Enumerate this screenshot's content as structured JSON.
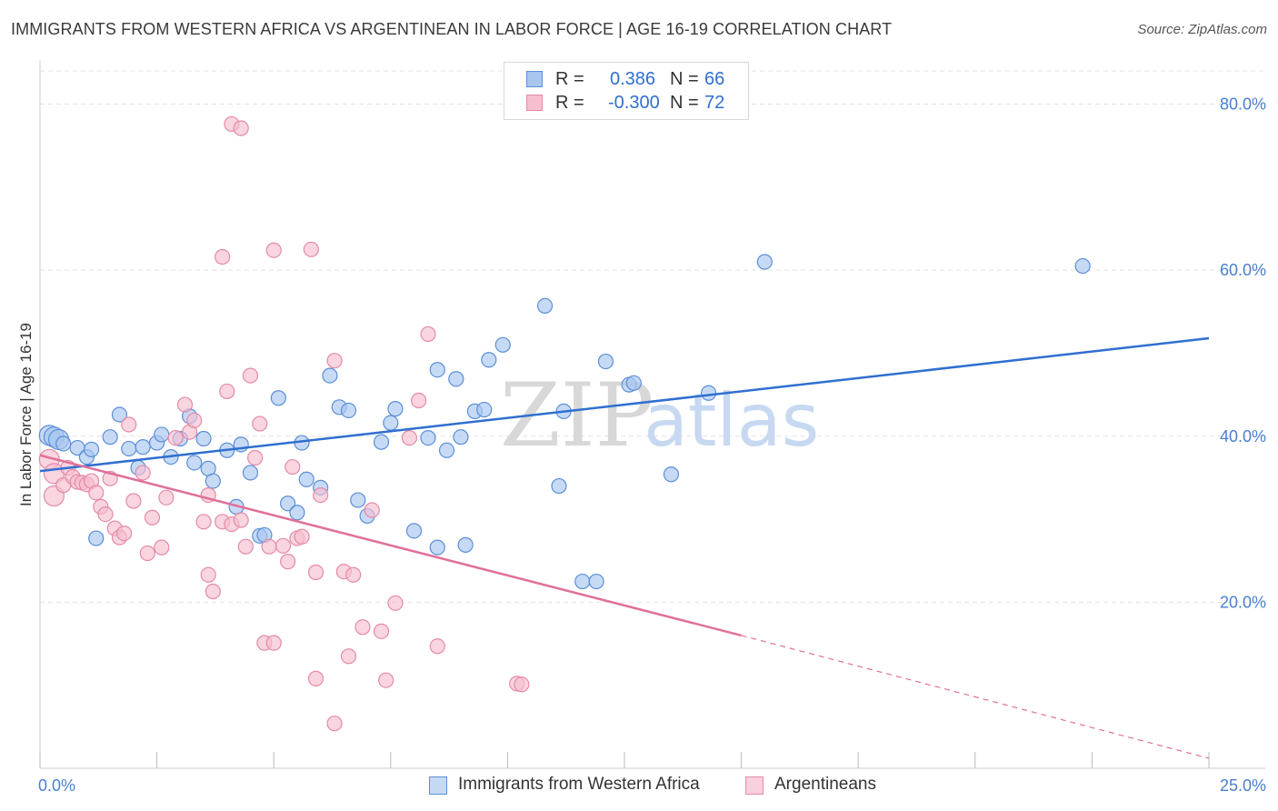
{
  "title": "IMMIGRANTS FROM WESTERN AFRICA VS ARGENTINEAN IN LABOR FORCE | AGE 16-19 CORRELATION CHART",
  "source": "Source: ZipAtlas.com",
  "colors": {
    "blue": "#5b8fd8",
    "blue_fill": "#a9c6ef",
    "blue_line": "#2f6fd0",
    "pink": "#e58aa8",
    "pink_fill": "#f6bfd0",
    "pink_line": "#e0709a",
    "axis_text": "#4a7fd0",
    "grid": "#e2e2e2"
  },
  "legend": {
    "rows": [
      {
        "r_label": "R =",
        "r_value": "0.386",
        "n_label": "N =",
        "n_value": "66",
        "color": "blue"
      },
      {
        "r_label": "R =",
        "r_value": "-0.300",
        "n_label": "N =",
        "n_value": "72",
        "color": "pink"
      }
    ]
  },
  "bottom_legend": {
    "items": [
      {
        "label": "Immigrants from Western Africa",
        "color": "blue"
      },
      {
        "label": "Argentineans",
        "color": "pink"
      }
    ]
  },
  "watermark": {
    "zip": "ZIP",
    "atlas": "atlas"
  },
  "chart_data": {
    "type": "scatter",
    "title": "IMMIGRANTS FROM WESTERN AFRICA VS ARGENTINEAN IN LABOR FORCE | AGE 16-19 CORRELATION CHART",
    "xlabel": "",
    "ylabel": "In Labor Force | Age 16-19",
    "xlim": [
      0,
      25
    ],
    "ylim": [
      0,
      84
    ],
    "x_ticks": [
      0,
      2.5,
      5,
      7.5,
      10,
      12.5,
      15,
      17.5,
      20,
      22.5,
      25
    ],
    "x_tick_labels": [
      "0.0%",
      "",
      "",
      "",
      "",
      "",
      "",
      "",
      "",
      "",
      "25.0%"
    ],
    "y_ticks": [
      20,
      40,
      60,
      80
    ],
    "y_tick_labels": [
      "20.0%",
      "40.0%",
      "60.0%",
      "80.0%"
    ],
    "grid": true,
    "legend_position": "top-center",
    "series": [
      {
        "name": "Immigrants from Western Africa",
        "color": "blue",
        "r": 0.386,
        "n": 66,
        "trend": {
          "x": [
            0,
            25
          ],
          "y": [
            35.8,
            51.8
          ],
          "style": "solid"
        },
        "points": [
          [
            0.2,
            40.1
          ],
          [
            0.3,
            39.9
          ],
          [
            0.4,
            39.6
          ],
          [
            0.5,
            39.1
          ],
          [
            0.8,
            38.6
          ],
          [
            1.0,
            37.5
          ],
          [
            1.1,
            38.4
          ],
          [
            1.2,
            27.7
          ],
          [
            1.5,
            39.9
          ],
          [
            1.7,
            42.6
          ],
          [
            1.9,
            38.5
          ],
          [
            2.1,
            36.2
          ],
          [
            2.2,
            38.7
          ],
          [
            2.5,
            39.2
          ],
          [
            2.6,
            40.2
          ],
          [
            2.8,
            37.5
          ],
          [
            3.0,
            39.7
          ],
          [
            3.2,
            42.4
          ],
          [
            3.3,
            36.8
          ],
          [
            3.5,
            39.7
          ],
          [
            3.6,
            36.1
          ],
          [
            3.7,
            34.6
          ],
          [
            4.0,
            38.3
          ],
          [
            4.2,
            31.5
          ],
          [
            4.3,
            39.0
          ],
          [
            4.5,
            35.6
          ],
          [
            4.7,
            28.0
          ],
          [
            4.8,
            28.1
          ],
          [
            5.1,
            44.6
          ],
          [
            5.3,
            31.9
          ],
          [
            5.5,
            30.8
          ],
          [
            5.6,
            39.2
          ],
          [
            5.7,
            34.8
          ],
          [
            6.0,
            33.8
          ],
          [
            6.2,
            47.3
          ],
          [
            6.4,
            43.5
          ],
          [
            6.6,
            43.1
          ],
          [
            6.8,
            32.3
          ],
          [
            7.0,
            30.4
          ],
          [
            7.3,
            39.3
          ],
          [
            7.5,
            41.6
          ],
          [
            7.6,
            43.3
          ],
          [
            8.0,
            28.6
          ],
          [
            8.3,
            39.8
          ],
          [
            8.5,
            48.0
          ],
          [
            8.5,
            26.6
          ],
          [
            8.7,
            38.3
          ],
          [
            8.9,
            46.9
          ],
          [
            9.0,
            39.9
          ],
          [
            9.1,
            26.9
          ],
          [
            9.3,
            43.0
          ],
          [
            9.5,
            43.2
          ],
          [
            9.6,
            49.2
          ],
          [
            9.9,
            51.0
          ],
          [
            10.8,
            55.7
          ],
          [
            11.1,
            34.0
          ],
          [
            11.2,
            43.0
          ],
          [
            11.6,
            22.5
          ],
          [
            11.9,
            22.5
          ],
          [
            12.1,
            49.0
          ],
          [
            12.6,
            46.2
          ],
          [
            12.7,
            46.4
          ],
          [
            13.5,
            35.4
          ],
          [
            14.3,
            45.2
          ],
          [
            15.5,
            61.0
          ],
          [
            22.3,
            60.5
          ]
        ]
      },
      {
        "name": "Argentineans",
        "color": "pink",
        "r": -0.3,
        "n": 72,
        "trend": {
          "x": [
            0,
            15
          ],
          "y": [
            37.7,
            16.0
          ],
          "style": "solid"
        },
        "trend_extension": {
          "x": [
            15,
            25
          ],
          "y": [
            16.0,
            1.2
          ],
          "style": "dashed"
        },
        "points": [
          [
            0.2,
            37.2
          ],
          [
            0.3,
            35.5
          ],
          [
            0.3,
            32.8
          ],
          [
            0.5,
            34.1
          ],
          [
            0.6,
            36.2
          ],
          [
            0.7,
            35.1
          ],
          [
            0.8,
            34.5
          ],
          [
            0.9,
            34.4
          ],
          [
            1.0,
            34.2
          ],
          [
            1.1,
            34.6
          ],
          [
            1.2,
            33.2
          ],
          [
            1.3,
            31.5
          ],
          [
            1.4,
            30.6
          ],
          [
            1.5,
            34.9
          ],
          [
            1.6,
            28.9
          ],
          [
            1.7,
            27.8
          ],
          [
            1.8,
            28.3
          ],
          [
            1.9,
            41.4
          ],
          [
            2.0,
            32.2
          ],
          [
            2.2,
            35.6
          ],
          [
            2.3,
            25.9
          ],
          [
            2.4,
            30.2
          ],
          [
            2.6,
            26.6
          ],
          [
            2.7,
            32.6
          ],
          [
            2.9,
            39.8
          ],
          [
            3.1,
            43.8
          ],
          [
            3.2,
            40.5
          ],
          [
            3.3,
            41.9
          ],
          [
            3.5,
            29.7
          ],
          [
            3.6,
            32.9
          ],
          [
            3.6,
            23.3
          ],
          [
            3.7,
            21.3
          ],
          [
            3.9,
            29.7
          ],
          [
            4.0,
            45.4
          ],
          [
            4.1,
            29.4
          ],
          [
            4.3,
            29.9
          ],
          [
            4.4,
            26.7
          ],
          [
            4.5,
            47.3
          ],
          [
            4.6,
            37.4
          ],
          [
            4.7,
            41.5
          ],
          [
            4.8,
            15.1
          ],
          [
            4.9,
            26.7
          ],
          [
            5.0,
            15.1
          ],
          [
            5.2,
            26.8
          ],
          [
            5.3,
            24.9
          ],
          [
            5.4,
            36.3
          ],
          [
            5.5,
            27.7
          ],
          [
            5.6,
            27.9
          ],
          [
            5.8,
            62.5
          ],
          [
            5.9,
            23.6
          ],
          [
            5.9,
            10.8
          ],
          [
            6.0,
            32.9
          ],
          [
            6.3,
            49.1
          ],
          [
            6.3,
            5.4
          ],
          [
            6.5,
            23.7
          ],
          [
            6.6,
            13.5
          ],
          [
            6.7,
            23.3
          ],
          [
            6.9,
            17.0
          ],
          [
            7.1,
            31.1
          ],
          [
            7.3,
            16.5
          ],
          [
            7.4,
            10.6
          ],
          [
            7.6,
            19.9
          ],
          [
            7.9,
            39.8
          ],
          [
            8.1,
            44.3
          ],
          [
            8.3,
            52.3
          ],
          [
            8.5,
            14.7
          ],
          [
            10.2,
            10.2
          ],
          [
            10.3,
            10.1
          ],
          [
            4.1,
            77.6
          ],
          [
            4.3,
            77.1
          ],
          [
            3.9,
            61.6
          ],
          [
            5.0,
            62.4
          ]
        ]
      }
    ]
  }
}
